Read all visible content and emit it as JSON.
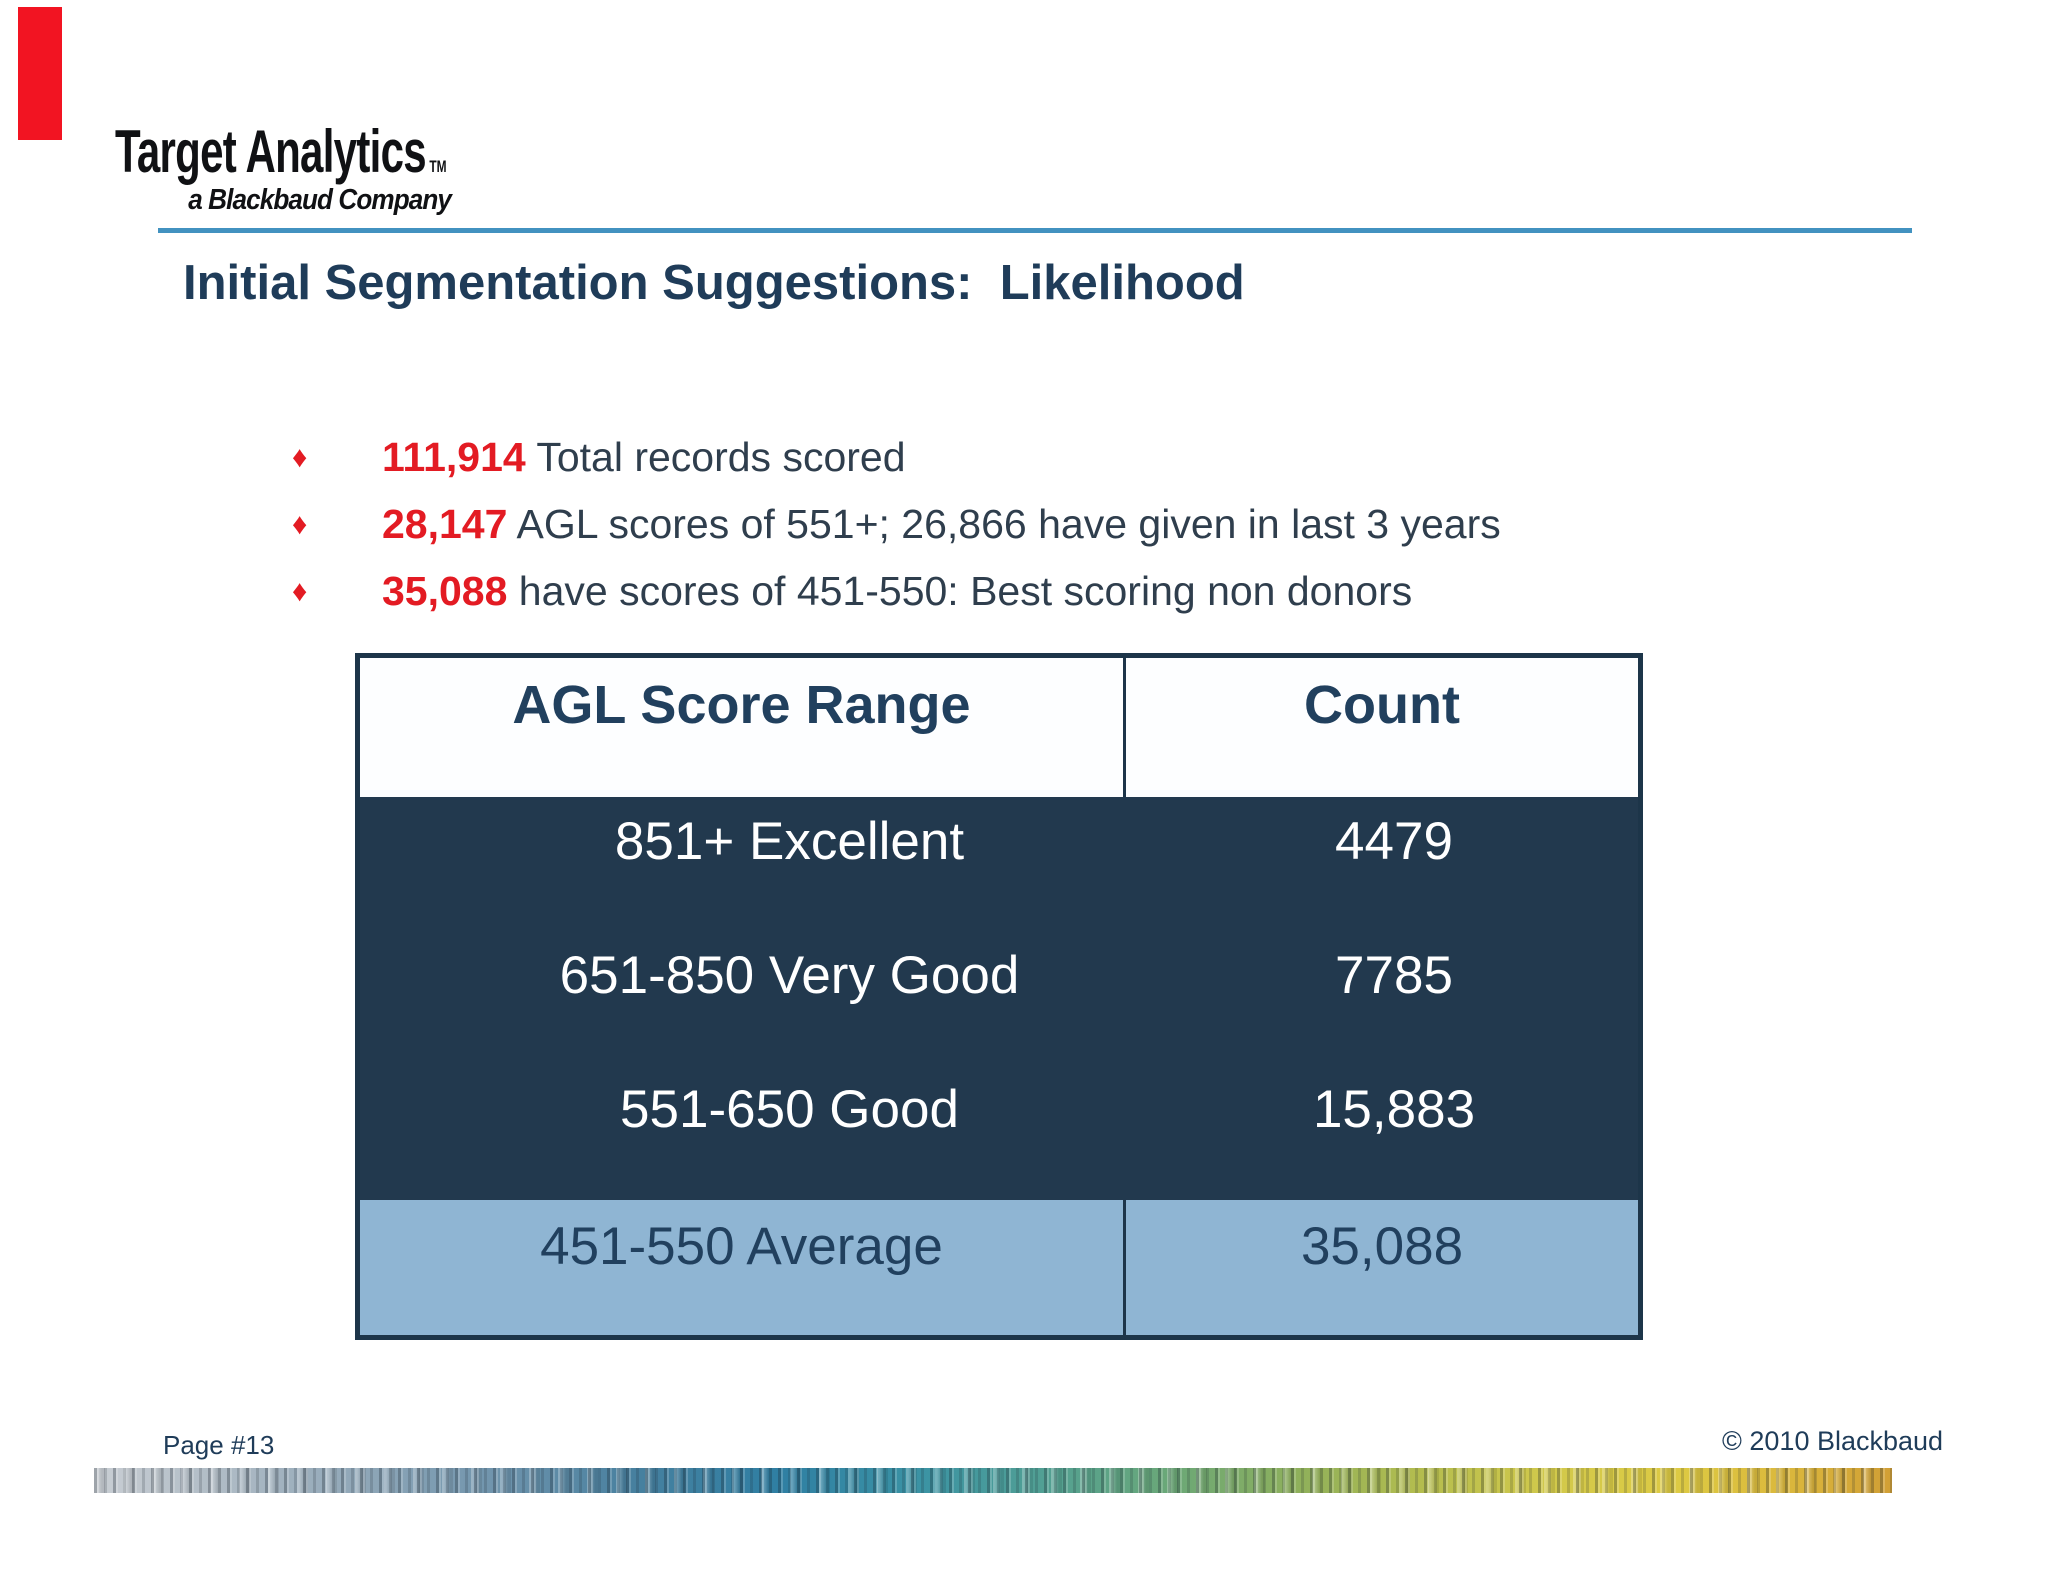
{
  "colors": {
    "marker-red": "#f21422",
    "accent-red": "#e31b23",
    "navy": "#1f3c59",
    "slate": "#2f3e4d",
    "logo-black": "#101114",
    "rule-blue": "#4292c0",
    "table-border": "#1d3549",
    "table-dark-bg": "#22394e",
    "table-light-bg": "#8fb5d3",
    "header-text": "#21405e"
  },
  "logo": {
    "brand": "Target Analytics",
    "trademark": "TM",
    "tagline": "a Blackbaud Company"
  },
  "title": "Initial Segmentation Suggestions:  Likelihood",
  "bullet_glyph": "♦",
  "bullets": [
    {
      "value": "111,914",
      "text": " Total records scored"
    },
    {
      "value": "28,147",
      "text": " AGL scores of 551+; 26,866 have given in last 3 years"
    },
    {
      "value": "35,088",
      "text": " have scores of 451-550: Best scoring non donors"
    }
  ],
  "table": {
    "columns": [
      "AGL Score Range",
      "Count"
    ],
    "rows": [
      {
        "range": "851+ Excellent",
        "count": "4479"
      },
      {
        "range": "651-850 Very Good",
        "count": "7785"
      },
      {
        "range": "551-650 Good",
        "count": "15,883"
      },
      {
        "range": "451-550 Average",
        "count": "35,088"
      }
    ]
  },
  "footer": {
    "page_label": "Page #13",
    "copyright": "© 2010 Blackbaud"
  }
}
